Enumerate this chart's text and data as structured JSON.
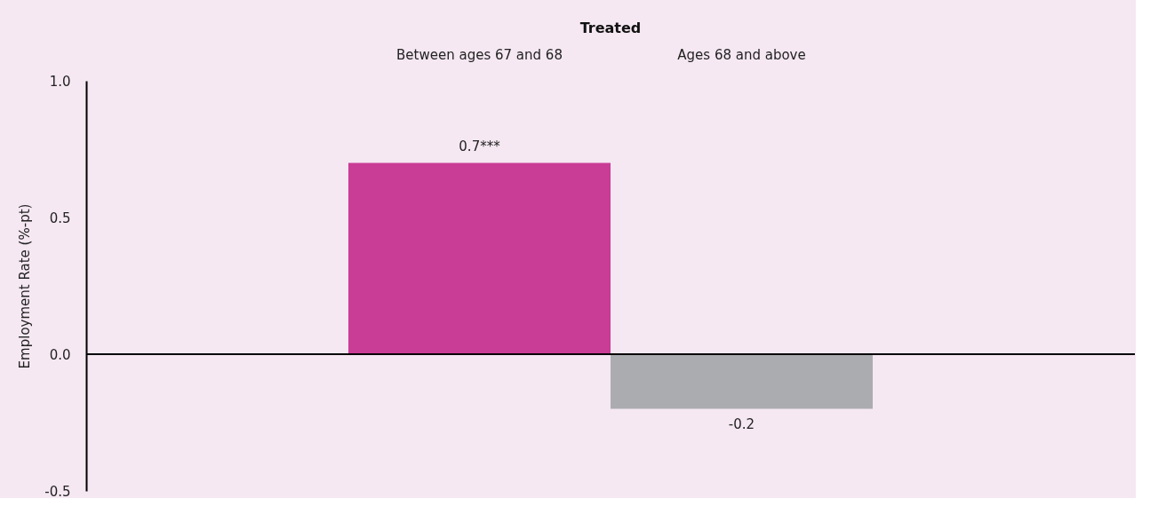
{
  "chart_data": {
    "type": "bar",
    "title": "Treated",
    "ylabel": "Employment Rate (%-pt)",
    "categories": [
      "Between ages 67 and 68",
      "Ages 68 and above"
    ],
    "values": [
      0.7,
      -0.2
    ],
    "colors": [
      "#c93d96",
      "#abacb0"
    ],
    "value_labels": [
      "0.7***",
      "-0.2"
    ],
    "ylim": [
      -0.5,
      1.0
    ],
    "yticks": [
      {
        "value": -0.5,
        "label": "-0.5"
      },
      {
        "value": 0,
        "label": "0.0"
      },
      {
        "value": 0.5,
        "label": "0.5"
      },
      {
        "value": 1,
        "label": "1.0"
      }
    ],
    "ref_lines": [
      {
        "axis": "y",
        "value": 0,
        "color": "#000000"
      }
    ],
    "grid": false,
    "legend": false
  }
}
